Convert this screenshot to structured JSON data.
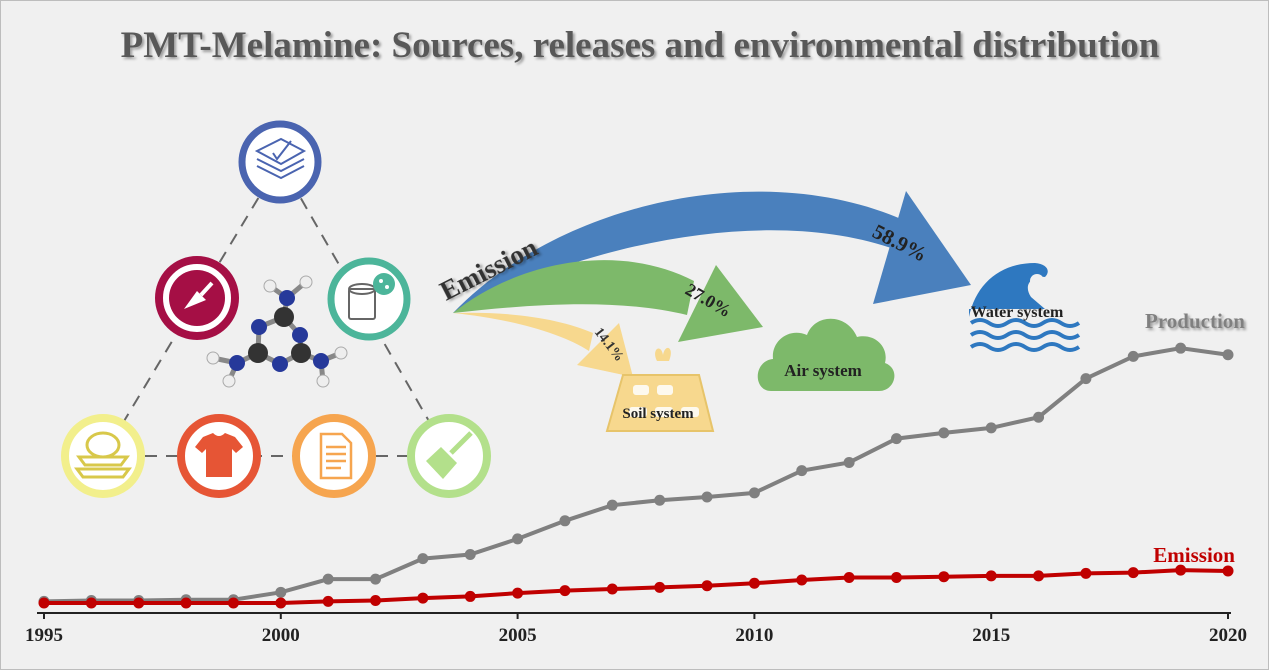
{
  "title": "PMT-Melamine: Sources, releases and environmental distribution",
  "flow": {
    "emission_label": "Emission",
    "arrows": [
      {
        "percent": "58.9%",
        "target": "Water system",
        "color": "#4a80bd"
      },
      {
        "percent": "27.0%",
        "target": "Air system",
        "color": "#7db96a"
      },
      {
        "percent": "14.1%",
        "target": "Soil system",
        "color": "#f7d88e"
      }
    ]
  },
  "sources": [
    {
      "name": "layers-icon",
      "color": "#4a64b0"
    },
    {
      "name": "trowel-icon",
      "color": "#a50f45"
    },
    {
      "name": "paint-bucket-icon",
      "color": "#4cb59a"
    },
    {
      "name": "dishes-icon",
      "color": "#f2ef8c"
    },
    {
      "name": "tshirt-icon",
      "color": "#e65535"
    },
    {
      "name": "document-icon",
      "color": "#f6a54f"
    },
    {
      "name": "brush-icon",
      "color": "#b3e08b"
    }
  ],
  "chart_data": {
    "type": "line",
    "x": [
      1995,
      1996,
      1997,
      1998,
      1999,
      2000,
      2001,
      2002,
      2003,
      2004,
      2005,
      2006,
      2007,
      2008,
      2009,
      2010,
      2011,
      2012,
      2013,
      2014,
      2015,
      2016,
      2017,
      2018,
      2019,
      2020
    ],
    "xticks": [
      "1995",
      "2000",
      "2005",
      "2010",
      "2015",
      "2020"
    ],
    "series": [
      {
        "name": "Production",
        "color": "#808080",
        "values": [
          2,
          3,
          3,
          4,
          4,
          13,
          29,
          29,
          54,
          59,
          78,
          100,
          119,
          125,
          129,
          134,
          161,
          171,
          200,
          207,
          213,
          226,
          273,
          300,
          310,
          302
        ]
      },
      {
        "name": "Emission",
        "color": "#c00000",
        "values": [
          0,
          0,
          0,
          0,
          0,
          0,
          2,
          3,
          6,
          8,
          12,
          15,
          17,
          19,
          21,
          24,
          28,
          31,
          31,
          32,
          33,
          33,
          36,
          37,
          40,
          39
        ]
      }
    ]
  }
}
